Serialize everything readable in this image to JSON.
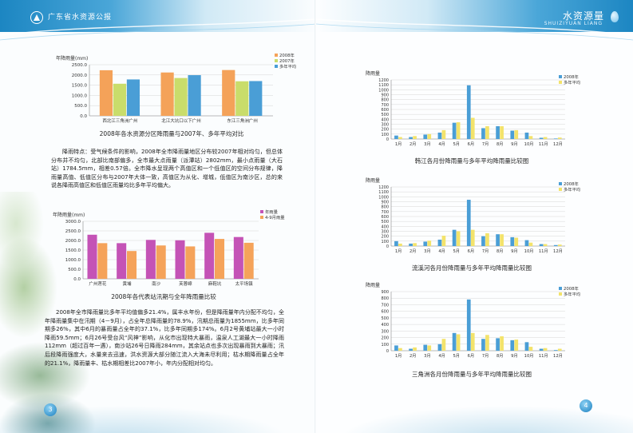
{
  "header": {
    "left_title": "广东省水资源公报",
    "right_title": "水资源量",
    "right_subtitle": "SHUIZIYUAN LIANG"
  },
  "page_numbers": {
    "left": "3",
    "right": "4"
  },
  "captions": {
    "chart1": "2008年各水资源分区降雨量与2007年、多年平均对比",
    "chart2": "2008年各代表站汛期与全年降雨量比较",
    "chart3": "韩江各月份降雨量与多年平均降雨量比较图",
    "chart4": "流溪河各月份降雨量与多年平均降雨量比较图",
    "chart5": "三角洲各月份降雨量与多年平均降雨量比较图"
  },
  "text": {
    "para1": "降雨特点：受气候条件的影响，2008年全市降雨量地区分布较2007年相对均匀，但总体分布并不均匀，北部比南部偏多，全市最大点雨量（派潭站）2802mm，最小点雨量（大石站）1784.5mm，相差0.57倍。全市降水呈现两个高值区和一个低值区的空间分布规律，降雨量高值、低值区分布与2007年大体一致，高值区为从化、增城，低值区为南沙区，总的来说各降雨高值区和低值区雨量均比多年平均偏大。",
    "para2": "2008年全市降雨量比多年平均值偏多21.4%，属丰水年份，但是降雨量年内分配不均匀，全年降雨量集中在汛期（4－9月），占全年总降雨量的78.9%，汛期总雨量为1855mm，比多年同期多26%，其中6月的暴雨量占全年的37.1%，比多年同期多174%。6月2号黄埔站最大一小时降雨59.5mm；6月26号受台风“风神”影响，从化市出现特大暴雨，温泉人工湖最大一小时降雨112mm（超过百年一遇），南沙站26号日降雨284mm，其余站点也多次出现暴雨到大暴雨；汛后段降雨强度大，水量来去迅速，洪水资源大部分随江流入大海未尽利用；枯水期降雨量占全年的21.1%，降雨量丰、枯水期相差比2007年小，年内分配相对均匀。"
  },
  "chart_data": [
    {
      "type": "bar",
      "title": "",
      "ylabel": "年降雨量(mm)",
      "ylim": [
        0,
        2500
      ],
      "yticks": [
        "0.0",
        "500.0",
        "1000.0",
        "1500.0",
        "2000.0",
        "2500.0"
      ],
      "categories": [
        "西北江三角洲广州",
        "北江大坑口以下广州",
        "东江三角洲广州"
      ],
      "series": [
        {
          "name": "2008年",
          "color": "#f4a259",
          "values": [
            2230,
            2120,
            2240
          ]
        },
        {
          "name": "2007年",
          "color": "#c9dd6b",
          "values": [
            1570,
            1850,
            1690
          ]
        },
        {
          "name": "多年平均",
          "color": "#4a9ed6",
          "values": [
            1780,
            1990,
            1700
          ]
        }
      ],
      "legend": "top-right"
    },
    {
      "type": "bar",
      "title": "",
      "ylabel": "年降雨量(mm)",
      "ylim": [
        0,
        3000
      ],
      "yticks": [
        "0.0",
        "500.0",
        "1000.0",
        "1500.0",
        "2000.0",
        "2500.0",
        "3000.0"
      ],
      "categories": [
        "广州莲花",
        "黄埔",
        "南沙",
        "芙蓉嶂",
        "麻鞋坑",
        "太平场镇"
      ],
      "series": [
        {
          "name": "年雨量",
          "color": "#c453b6",
          "values": [
            2300,
            1860,
            2030,
            2010,
            2400,
            2180
          ]
        },
        {
          "name": "4-9月雨量",
          "color": "#f5a35a",
          "values": [
            1860,
            1450,
            1740,
            1690,
            2080,
            1880
          ]
        }
      ],
      "legend": "top-right"
    },
    {
      "type": "bar",
      "title": "",
      "ylabel": "降雨量",
      "ylim": [
        0,
        1200
      ],
      "yticks": [
        "0",
        "100",
        "200",
        "300",
        "400",
        "500",
        "600",
        "700",
        "800",
        "900",
        "1000",
        "1100",
        "1200"
      ],
      "categories": [
        "1月",
        "2月",
        "3月",
        "4月",
        "5月",
        "6月",
        "7月",
        "8月",
        "9月",
        "10月",
        "11月",
        "12月"
      ],
      "series": [
        {
          "name": "2008年",
          "color": "#4a9ed6",
          "values": [
            70,
            40,
            90,
            130,
            330,
            1090,
            220,
            260,
            170,
            130,
            25,
            10
          ]
        },
        {
          "name": "多年平均",
          "color": "#f3e36b",
          "values": [
            40,
            60,
            100,
            180,
            340,
            430,
            260,
            260,
            180,
            60,
            40,
            30
          ]
        }
      ],
      "legend": "top-right"
    },
    {
      "type": "bar",
      "title": "",
      "ylabel": "降雨量",
      "ylim": [
        0,
        1200
      ],
      "yticks": [
        "0",
        "100",
        "200",
        "300",
        "400",
        "500",
        "600",
        "700",
        "800",
        "900",
        "1000",
        "1100",
        "1200"
      ],
      "categories": [
        "1月",
        "2月",
        "3月",
        "4月",
        "5月",
        "6月",
        "7月",
        "8月",
        "9月",
        "10月",
        "11月",
        "12月"
      ],
      "series": [
        {
          "name": "2008年",
          "color": "#4a9ed6",
          "values": [
            100,
            50,
            90,
            130,
            330,
            940,
            200,
            240,
            180,
            120,
            40,
            20
          ]
        },
        {
          "name": "多年平均",
          "color": "#f3e36b",
          "values": [
            50,
            60,
            110,
            210,
            300,
            330,
            260,
            240,
            170,
            70,
            40,
            30
          ]
        }
      ],
      "legend": "top-right"
    },
    {
      "type": "bar",
      "title": "",
      "ylabel": "降雨量",
      "ylim": [
        0,
        900
      ],
      "yticks": [
        "0",
        "100",
        "200",
        "300",
        "400",
        "500",
        "600",
        "700",
        "800",
        "900"
      ],
      "categories": [
        "1月",
        "2月",
        "3月",
        "4月",
        "5月",
        "6月",
        "7月",
        "8月",
        "9月",
        "10月",
        "11月",
        "12月"
      ],
      "series": [
        {
          "name": "2008年",
          "color": "#4a9ed6",
          "values": [
            80,
            30,
            90,
            100,
            270,
            780,
            180,
            190,
            160,
            130,
            30,
            10
          ]
        },
        {
          "name": "多年平均",
          "color": "#f3e36b",
          "values": [
            40,
            50,
            80,
            180,
            250,
            270,
            240,
            220,
            170,
            60,
            40,
            30
          ]
        }
      ],
      "legend": "top-right"
    }
  ]
}
